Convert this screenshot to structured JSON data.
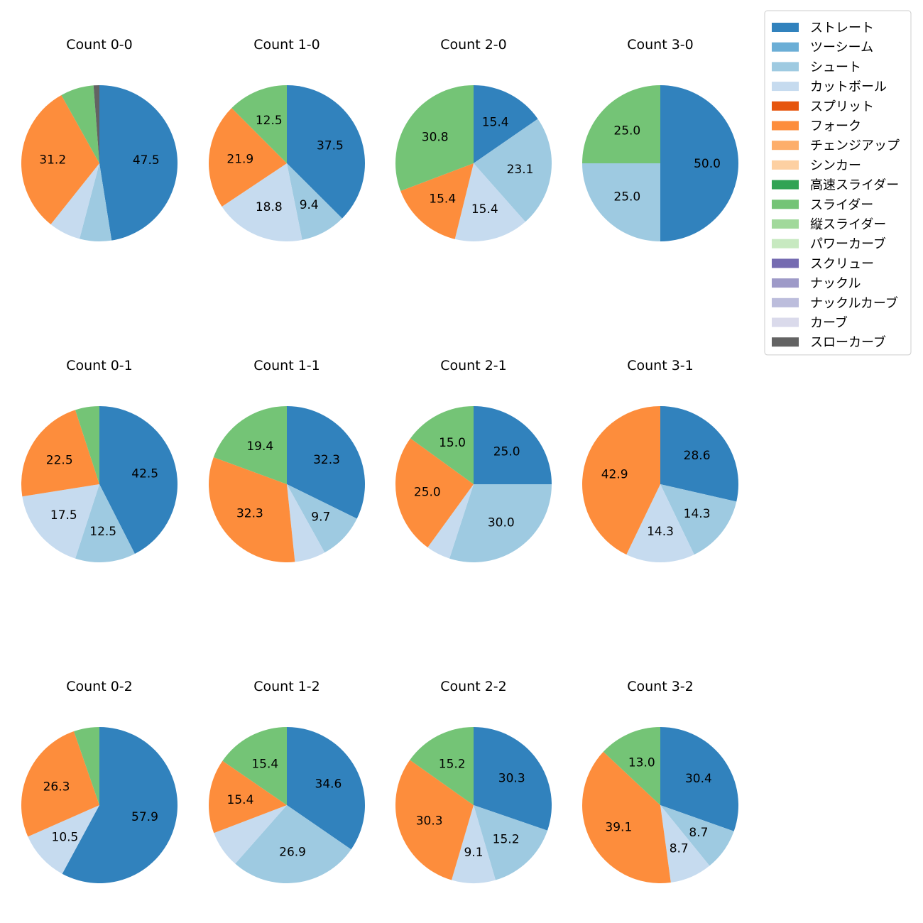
{
  "legend": {
    "entries": [
      {
        "name": "ストレート",
        "color": "#3182bd"
      },
      {
        "name": "ツーシーム",
        "color": "#6baed6"
      },
      {
        "name": "シュート",
        "color": "#9ecae1"
      },
      {
        "name": "カットボール",
        "color": "#c6dbef"
      },
      {
        "name": "スプリット",
        "color": "#e6550d"
      },
      {
        "name": "フォーク",
        "color": "#fd8d3c"
      },
      {
        "name": "チェンジアップ",
        "color": "#fdae6b"
      },
      {
        "name": "シンカー",
        "color": "#fdd0a2"
      },
      {
        "name": "高速スライダー",
        "color": "#31a354"
      },
      {
        "name": "スライダー",
        "color": "#74c476"
      },
      {
        "name": "縦スライダー",
        "color": "#a1d99b"
      },
      {
        "name": "パワーカーブ",
        "color": "#c7e9c0"
      },
      {
        "name": "スクリュー",
        "color": "#756bb1"
      },
      {
        "name": "ナックル",
        "color": "#9e9ac8"
      },
      {
        "name": "ナックルカーブ",
        "color": "#bcbddc"
      },
      {
        "name": "カーブ",
        "color": "#dadaeb"
      },
      {
        "name": "スローカーブ",
        "color": "#636363"
      }
    ]
  },
  "chart_data": [
    {
      "type": "pie",
      "title": "Count 0-0",
      "slices": [
        {
          "pitch": "ストレート",
          "value": 47.5,
          "label": "47.5"
        },
        {
          "pitch": "シュート",
          "value": 6.6,
          "label": ""
        },
        {
          "pitch": "カットボール",
          "value": 6.6,
          "label": ""
        },
        {
          "pitch": "フォーク",
          "value": 31.2,
          "label": "31.2"
        },
        {
          "pitch": "スライダー",
          "value": 6.9,
          "label": ""
        },
        {
          "pitch": "スローカーブ",
          "value": 1.2,
          "label": ""
        }
      ]
    },
    {
      "type": "pie",
      "title": "Count 1-0",
      "slices": [
        {
          "pitch": "ストレート",
          "value": 37.5,
          "label": "37.5"
        },
        {
          "pitch": "シュート",
          "value": 9.4,
          "label": "9.4"
        },
        {
          "pitch": "カットボール",
          "value": 18.8,
          "label": "18.8"
        },
        {
          "pitch": "フォーク",
          "value": 21.9,
          "label": "21.9"
        },
        {
          "pitch": "スライダー",
          "value": 12.5,
          "label": "12.5"
        }
      ]
    },
    {
      "type": "pie",
      "title": "Count 2-0",
      "slices": [
        {
          "pitch": "ストレート",
          "value": 15.4,
          "label": "15.4"
        },
        {
          "pitch": "シュート",
          "value": 23.1,
          "label": "23.1"
        },
        {
          "pitch": "カットボール",
          "value": 15.4,
          "label": "15.4"
        },
        {
          "pitch": "フォーク",
          "value": 15.4,
          "label": "15.4"
        },
        {
          "pitch": "スライダー",
          "value": 30.8,
          "label": "30.8"
        }
      ]
    },
    {
      "type": "pie",
      "title": "Count 3-0",
      "slices": [
        {
          "pitch": "ストレート",
          "value": 50.0,
          "label": "50.0"
        },
        {
          "pitch": "シュート",
          "value": 25.0,
          "label": "25.0"
        },
        {
          "pitch": "スライダー",
          "value": 25.0,
          "label": "25.0"
        }
      ]
    },
    {
      "type": "pie",
      "title": "Count 0-1",
      "slices": [
        {
          "pitch": "ストレート",
          "value": 42.5,
          "label": "42.5"
        },
        {
          "pitch": "シュート",
          "value": 12.5,
          "label": "12.5"
        },
        {
          "pitch": "カットボール",
          "value": 17.5,
          "label": "17.5"
        },
        {
          "pitch": "フォーク",
          "value": 22.5,
          "label": "22.5"
        },
        {
          "pitch": "スライダー",
          "value": 5.0,
          "label": ""
        }
      ]
    },
    {
      "type": "pie",
      "title": "Count 1-1",
      "slices": [
        {
          "pitch": "ストレート",
          "value": 32.3,
          "label": "32.3"
        },
        {
          "pitch": "シュート",
          "value": 9.7,
          "label": "9.7"
        },
        {
          "pitch": "カットボール",
          "value": 6.4,
          "label": ""
        },
        {
          "pitch": "フォーク",
          "value": 32.3,
          "label": "32.3"
        },
        {
          "pitch": "スライダー",
          "value": 19.4,
          "label": "19.4"
        }
      ]
    },
    {
      "type": "pie",
      "title": "Count 2-1",
      "slices": [
        {
          "pitch": "ストレート",
          "value": 25.0,
          "label": "25.0"
        },
        {
          "pitch": "シュート",
          "value": 30.0,
          "label": "30.0"
        },
        {
          "pitch": "カットボール",
          "value": 5.0,
          "label": ""
        },
        {
          "pitch": "フォーク",
          "value": 25.0,
          "label": "25.0"
        },
        {
          "pitch": "スライダー",
          "value": 15.0,
          "label": "15.0"
        }
      ]
    },
    {
      "type": "pie",
      "title": "Count 3-1",
      "slices": [
        {
          "pitch": "ストレート",
          "value": 28.6,
          "label": "28.6"
        },
        {
          "pitch": "シュート",
          "value": 14.3,
          "label": "14.3"
        },
        {
          "pitch": "カットボール",
          "value": 14.3,
          "label": "14.3"
        },
        {
          "pitch": "フォーク",
          "value": 42.9,
          "label": "42.9"
        }
      ]
    },
    {
      "type": "pie",
      "title": "Count 0-2",
      "slices": [
        {
          "pitch": "ストレート",
          "value": 57.9,
          "label": "57.9"
        },
        {
          "pitch": "カットボール",
          "value": 10.5,
          "label": "10.5"
        },
        {
          "pitch": "フォーク",
          "value": 26.3,
          "label": "26.3"
        },
        {
          "pitch": "スライダー",
          "value": 5.3,
          "label": ""
        }
      ]
    },
    {
      "type": "pie",
      "title": "Count 1-2",
      "slices": [
        {
          "pitch": "ストレート",
          "value": 34.6,
          "label": "34.6"
        },
        {
          "pitch": "シュート",
          "value": 26.9,
          "label": "26.9"
        },
        {
          "pitch": "カットボール",
          "value": 7.7,
          "label": ""
        },
        {
          "pitch": "フォーク",
          "value": 15.4,
          "label": "15.4"
        },
        {
          "pitch": "スライダー",
          "value": 15.4,
          "label": "15.4"
        }
      ]
    },
    {
      "type": "pie",
      "title": "Count 2-2",
      "slices": [
        {
          "pitch": "ストレート",
          "value": 30.3,
          "label": "30.3"
        },
        {
          "pitch": "シュート",
          "value": 15.2,
          "label": "15.2"
        },
        {
          "pitch": "カットボール",
          "value": 9.1,
          "label": "9.1"
        },
        {
          "pitch": "フォーク",
          "value": 30.3,
          "label": "30.3"
        },
        {
          "pitch": "スライダー",
          "value": 15.2,
          "label": "15.2"
        }
      ]
    },
    {
      "type": "pie",
      "title": "Count 3-2",
      "slices": [
        {
          "pitch": "ストレート",
          "value": 30.4,
          "label": "30.4"
        },
        {
          "pitch": "シュート",
          "value": 8.7,
          "label": "8.7"
        },
        {
          "pitch": "カットボール",
          "value": 8.7,
          "label": "8.7"
        },
        {
          "pitch": "フォーク",
          "value": 39.1,
          "label": "39.1"
        },
        {
          "pitch": "スライダー",
          "value": 13.0,
          "label": "13.0"
        }
      ]
    }
  ]
}
